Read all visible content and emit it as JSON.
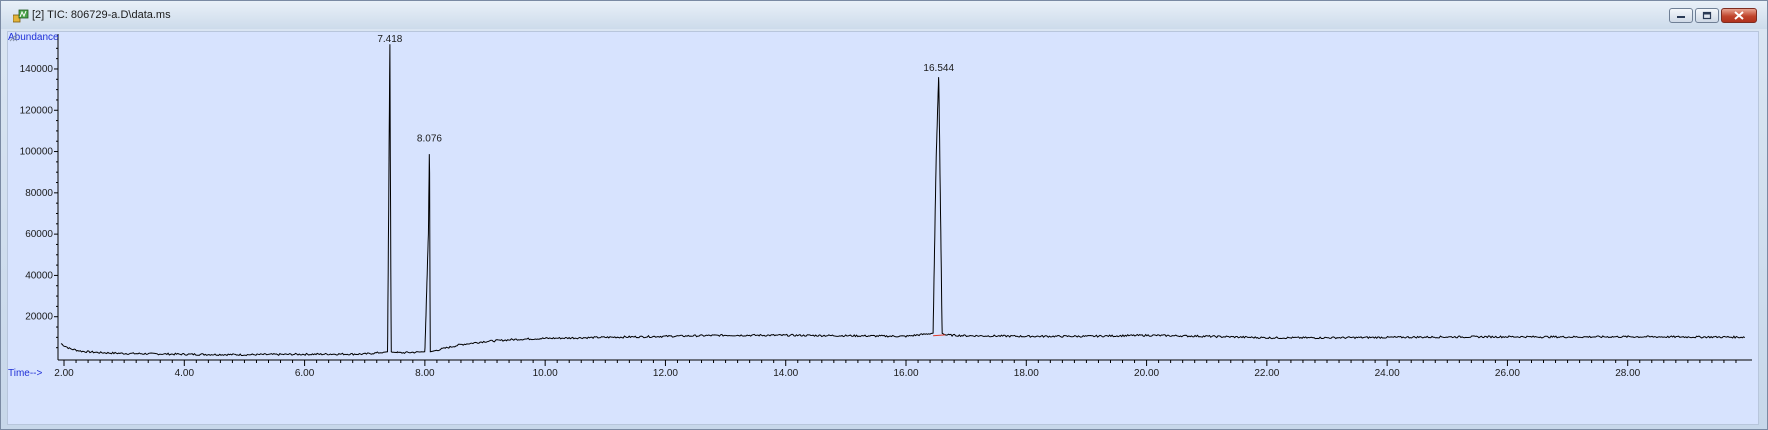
{
  "window": {
    "title": "[2] TIC: 806729-a.D\\data.ms",
    "icons": [
      "app-chromatogram-icon",
      "minimize-icon",
      "restore-icon",
      "close-icon"
    ]
  },
  "colors": {
    "plot_background": "#d7e3fe",
    "trace": "#000000",
    "peak_label": "#1f2fd6",
    "baseline_marker": "#e03a2a"
  },
  "chart_data": {
    "type": "line",
    "title": "",
    "ylabel": "Abundance",
    "xlabel": "Time-->",
    "xlim": [
      1.9,
      30.0
    ],
    "ylim": [
      0,
      155000
    ],
    "x_ticks": [
      "2.00",
      "4.00",
      "6.00",
      "8.00",
      "10.00",
      "12.00",
      "14.00",
      "16.00",
      "18.00",
      "20.00",
      "22.00",
      "24.00",
      "26.00",
      "28.00"
    ],
    "y_ticks": [
      "20000",
      "40000",
      "60000",
      "80000",
      "100000",
      "120000",
      "140000"
    ],
    "grid": false,
    "series": [
      {
        "x": [
          1.95,
          2.0,
          2.1,
          2.3,
          2.6,
          3.0,
          4.0,
          5.0,
          6.0,
          6.5,
          7.0,
          7.38,
          7.4,
          7.418,
          7.44,
          7.46,
          7.6,
          8.0,
          8.06,
          8.076,
          8.09,
          8.12,
          8.3,
          8.6,
          9.0,
          9.5,
          10.0,
          11.0,
          12.0,
          13.0,
          14.0,
          15.0,
          16.0,
          16.45,
          16.5,
          16.544,
          16.6,
          16.65,
          16.8,
          17.0,
          18.0,
          19.0,
          20.0,
          21.0,
          22.0,
          23.0,
          24.0,
          25.0,
          26.0,
          27.0,
          28.0,
          29.0,
          29.95
        ],
        "y": [
          7000,
          6000,
          4500,
          3200,
          2600,
          2200,
          1800,
          1600,
          1800,
          1900,
          1900,
          3000,
          80000,
          152000,
          3000,
          2800,
          2500,
          3000,
          62000,
          104000,
          3000,
          3200,
          4500,
          6500,
          8000,
          9000,
          9500,
          10000,
          10500,
          11000,
          11000,
          10800,
          10500,
          12000,
          95000,
          138000,
          12000,
          11200,
          11000,
          10800,
          10500,
          10500,
          11000,
          10500,
          9800,
          9800,
          10000,
          10200,
          10300,
          10200,
          10300,
          10200,
          10100
        ]
      }
    ],
    "annotations": [
      {
        "text": "7.418",
        "x": 7.418,
        "y": 152000
      },
      {
        "text": "8.076",
        "x": 8.076,
        "y": 104000
      },
      {
        "text": "16.544",
        "x": 16.544,
        "y": 138000
      }
    ]
  }
}
